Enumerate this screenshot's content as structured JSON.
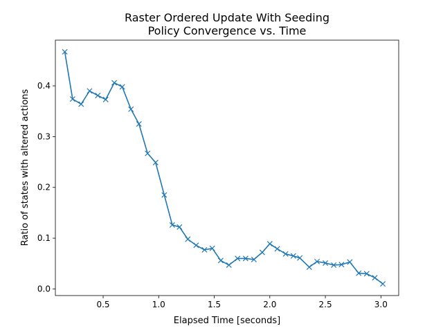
{
  "chart_data": {
    "type": "line",
    "title": "Raster Ordered Update With Seeding",
    "subtitle": "Policy Convergence vs. Time",
    "xlabel": "Elapsed Time [seconds]",
    "ylabel": "Ratio of states with altered actions",
    "xlim": [
      0.07,
      3.16
    ],
    "ylim": [
      -0.013,
      0.49
    ],
    "xticks": [
      0.5,
      1.0,
      1.5,
      2.0,
      2.5,
      3.0
    ],
    "xtick_labels": [
      "0.5",
      "1.0",
      "1.5",
      "2.0",
      "2.5",
      "3.0"
    ],
    "yticks": [
      0.0,
      0.1,
      0.2,
      0.3,
      0.4
    ],
    "ytick_labels": [
      "0.0",
      "0.1",
      "0.2",
      "0.3",
      "0.4"
    ],
    "grid": false,
    "series": [
      {
        "color": "#1f77b4",
        "marker": "x",
        "x": [
          0.155,
          0.225,
          0.302,
          0.378,
          0.452,
          0.523,
          0.6,
          0.672,
          0.75,
          0.822,
          0.9,
          0.972,
          1.05,
          1.122,
          1.187,
          1.262,
          1.337,
          1.412,
          1.482,
          1.558,
          1.632,
          1.71,
          1.782,
          1.857,
          1.932,
          2.0,
          2.067,
          2.142,
          2.212,
          2.27,
          2.355,
          2.425,
          2.5,
          2.575,
          2.645,
          2.72,
          2.8,
          2.872,
          2.945,
          3.017
        ],
        "y": [
          0.467,
          0.374,
          0.364,
          0.39,
          0.381,
          0.373,
          0.406,
          0.398,
          0.354,
          0.325,
          0.267,
          0.249,
          0.185,
          0.126,
          0.122,
          0.098,
          0.086,
          0.077,
          0.08,
          0.056,
          0.047,
          0.06,
          0.06,
          0.058,
          0.072,
          0.089,
          0.079,
          0.069,
          0.065,
          0.061,
          0.043,
          0.054,
          0.051,
          0.047,
          0.048,
          0.053,
          0.031,
          0.03,
          0.022,
          0.01
        ]
      }
    ]
  }
}
